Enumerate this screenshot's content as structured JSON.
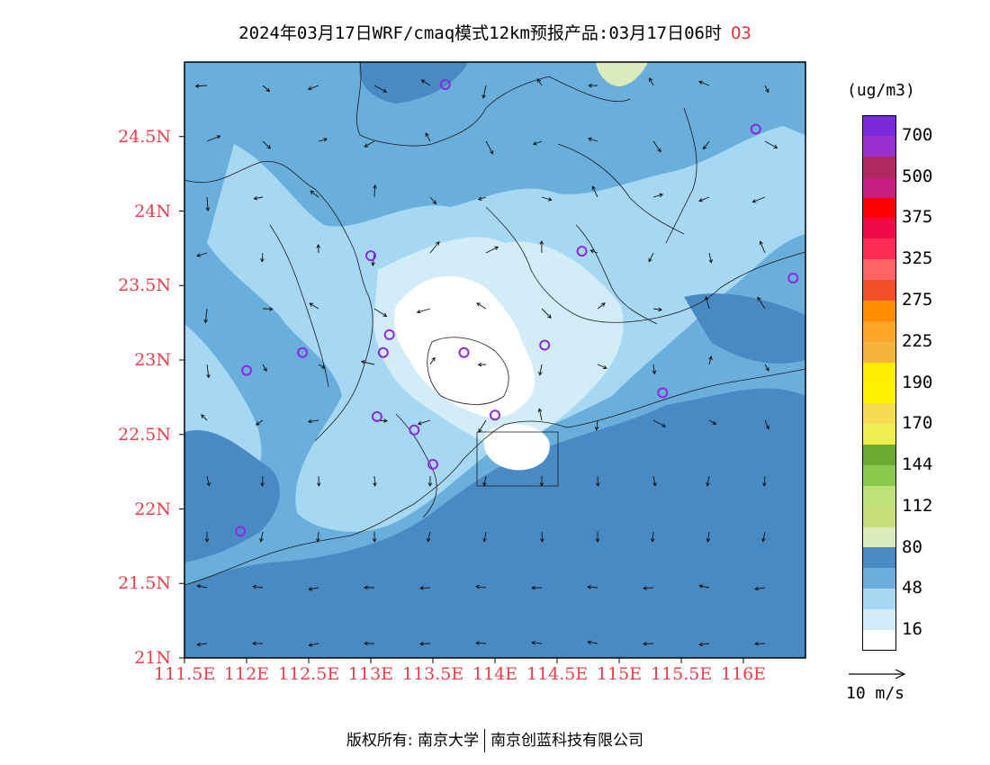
{
  "title": {
    "main": "2024年03月17日WRF/cmaq模式12km预报产品:03月17日06时",
    "species": "O3"
  },
  "map": {
    "lon_range": [
      111.5,
      116.5
    ],
    "lat_range": [
      21.0,
      25.0
    ],
    "lat_labels": [
      "24.5N",
      "24N",
      "23.5N",
      "23N",
      "22.5N",
      "22N",
      "21.5N",
      "21N"
    ],
    "lat_values": [
      24.5,
      24.0,
      23.5,
      23.0,
      22.5,
      22.0,
      21.5,
      21.0
    ],
    "lon_labels": [
      "111.5E",
      "112E",
      "112.5E",
      "113E",
      "113.5E",
      "114E",
      "114.5E",
      "115E",
      "115.5E",
      "116E"
    ],
    "lon_values": [
      111.5,
      112.0,
      112.5,
      113.0,
      113.5,
      114.0,
      114.5,
      115.0,
      115.5,
      116.0
    ],
    "station_color": "#8a2be2",
    "stations": [
      [
        113.6,
        24.85
      ],
      [
        116.1,
        24.55
      ],
      [
        113.0,
        23.7
      ],
      [
        114.7,
        23.73
      ],
      [
        116.4,
        23.55
      ],
      [
        113.15,
        23.17
      ],
      [
        113.1,
        23.05
      ],
      [
        113.75,
        23.05
      ],
      [
        114.4,
        23.1
      ],
      [
        112.45,
        23.05
      ],
      [
        112.0,
        22.93
      ],
      [
        115.35,
        22.78
      ],
      [
        113.05,
        22.62
      ],
      [
        113.35,
        22.53
      ],
      [
        114.0,
        22.63
      ],
      [
        113.5,
        22.3
      ],
      [
        111.95,
        21.85
      ]
    ]
  },
  "legend": {
    "units": "(ug/m3)",
    "colors": [
      "#7b2ad9",
      "#9b30d0",
      "#b0285f",
      "#c81e7f",
      "#ff0000",
      "#f00a46",
      "#ff2d55",
      "#ff6464",
      "#f05028",
      "#ff8c00",
      "#ffa628",
      "#f5b43c",
      "#ffee00",
      "#fff200",
      "#f5dc50",
      "#eef050",
      "#6eaa32",
      "#8cc84b",
      "#bee178",
      "#c8dc78",
      "#dcebbe",
      "#4a8ac4",
      "#6aaedc",
      "#a6d8f4",
      "#d2ecf8",
      "#ffffff"
    ],
    "labels": [
      "700",
      "500",
      "375",
      "325",
      "275",
      "225",
      "190",
      "170",
      "144",
      "112",
      "80",
      "48",
      "16"
    ]
  },
  "wind_reference": {
    "label": "10 m/s"
  },
  "footer": {
    "left": "版权所有: 南京大学",
    "right": "南京创蓝科技有限公司"
  }
}
